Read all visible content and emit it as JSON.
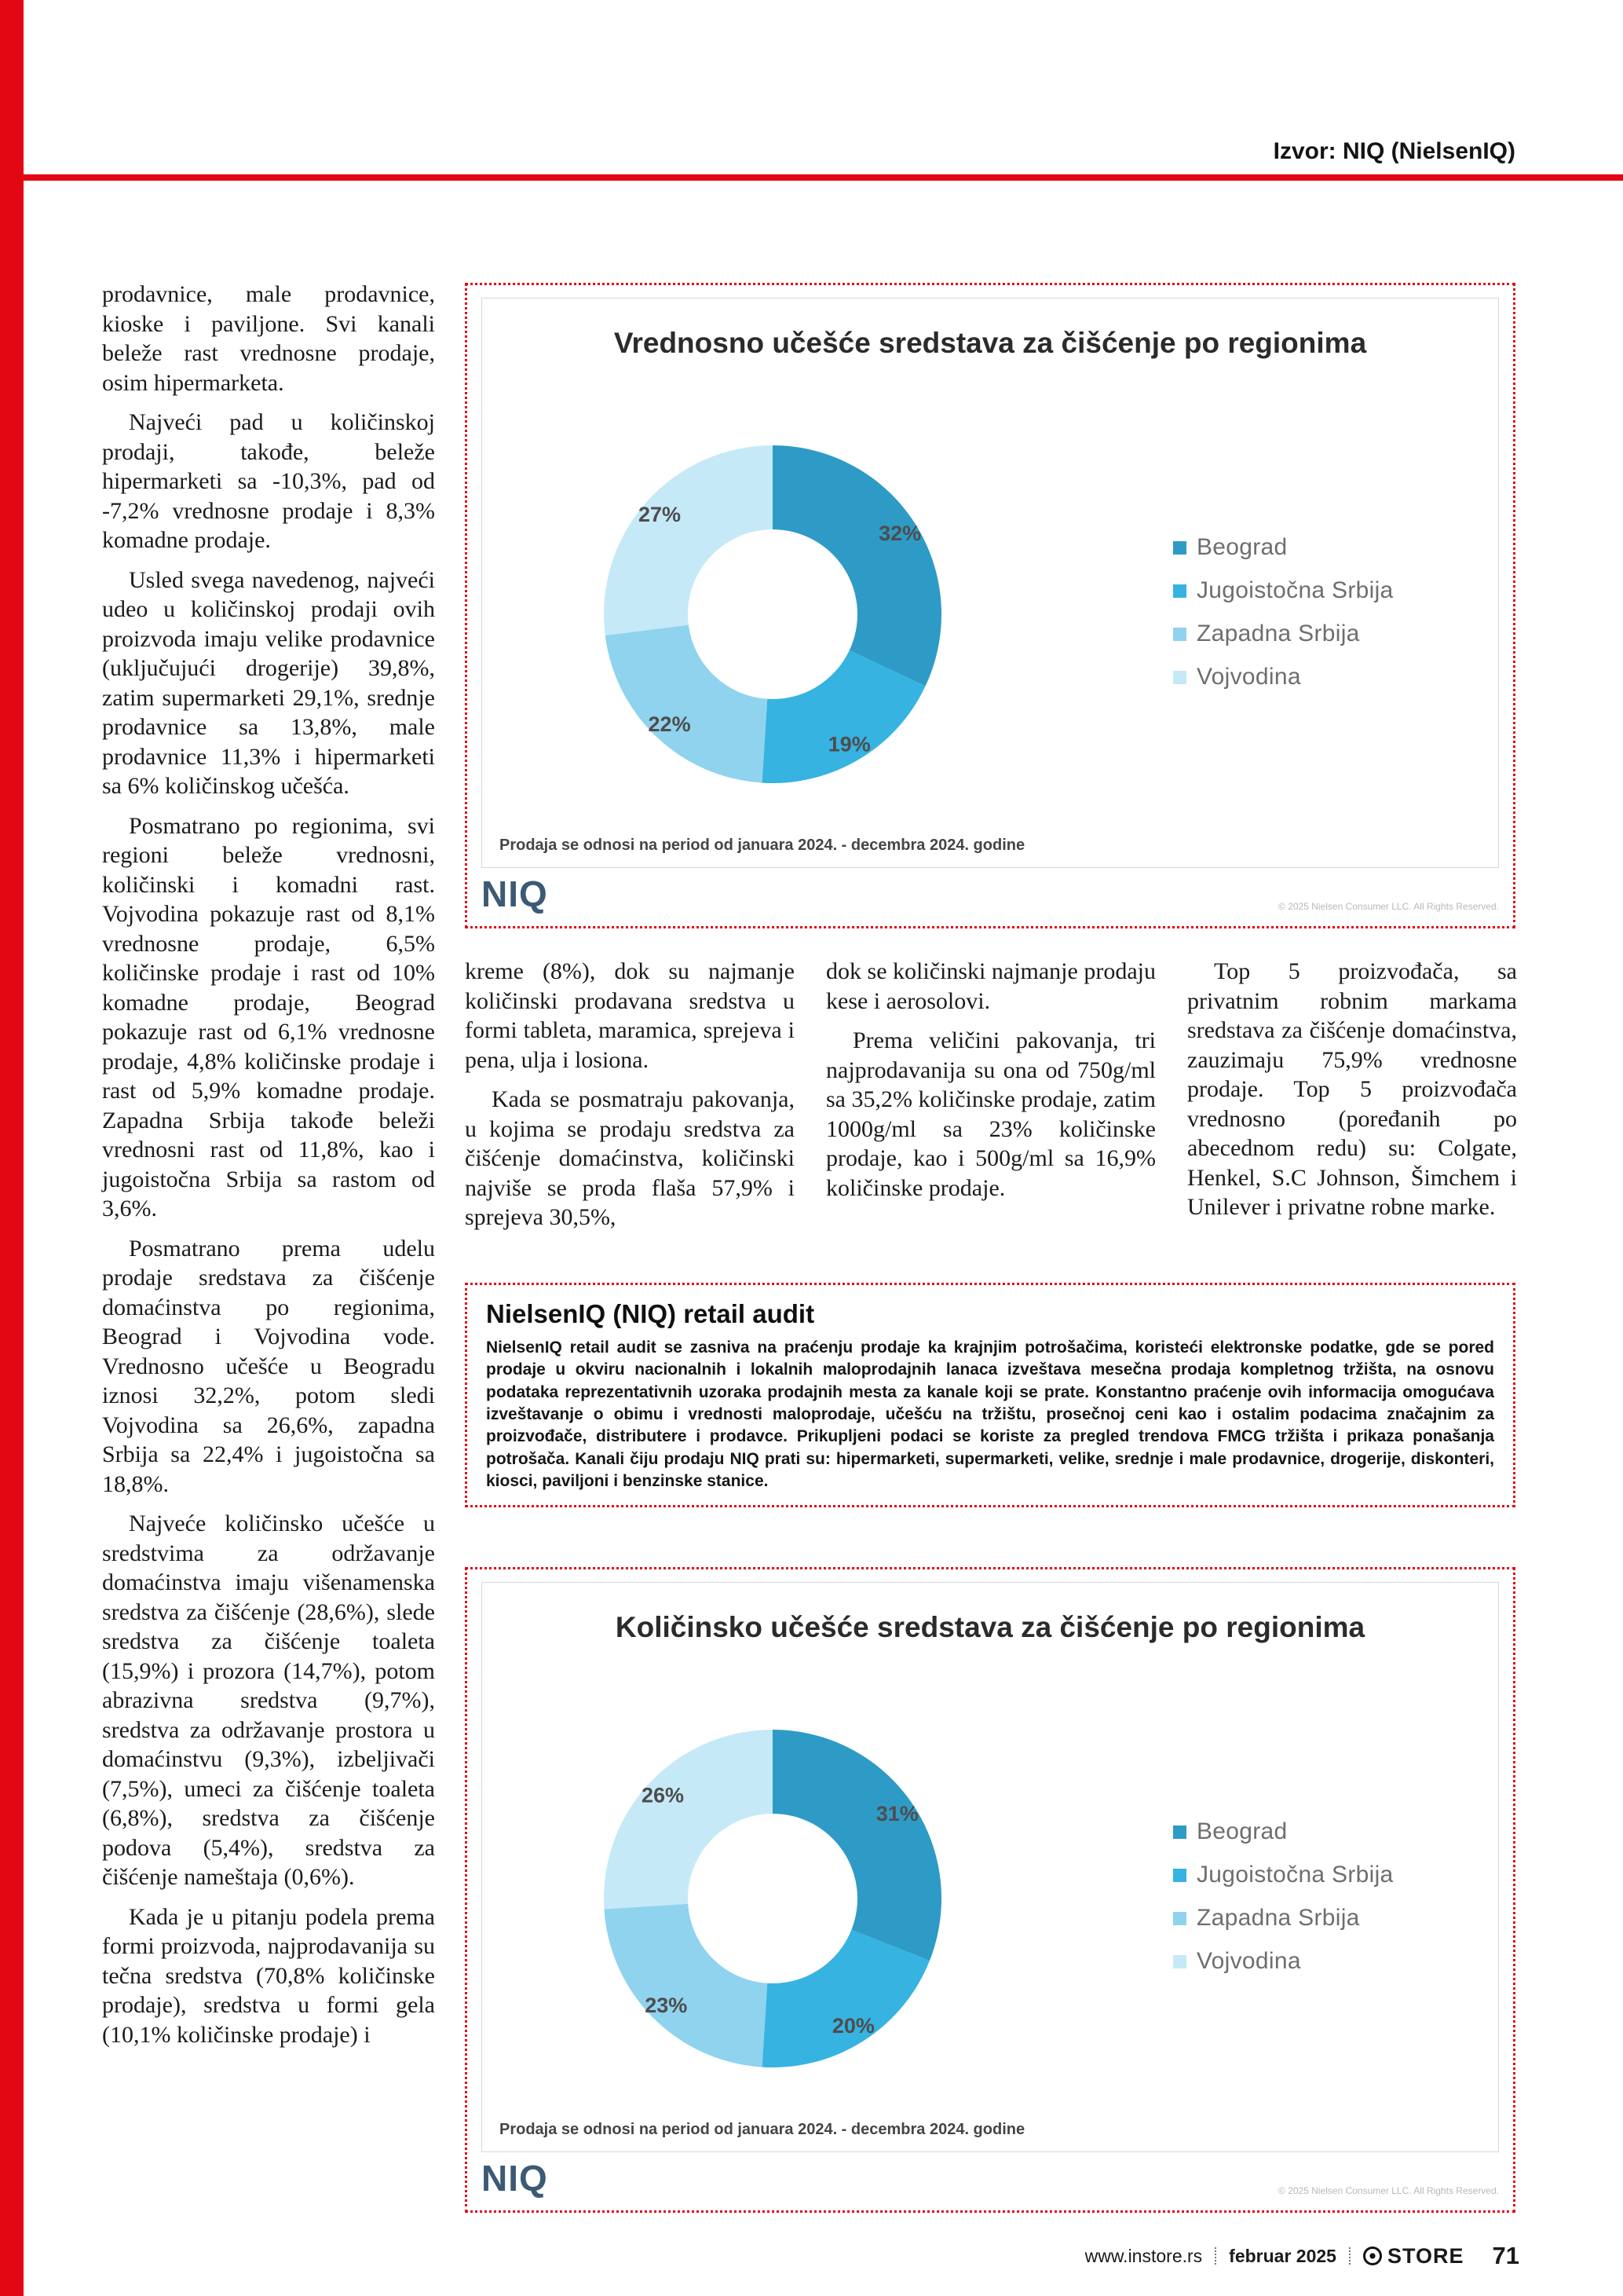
{
  "header": {
    "source_label": "Izvor: NIQ (NielsenIQ)"
  },
  "left_column": {
    "paragraphs": [
      {
        "cont": true,
        "text": "prodavnice, male prodavnice, kioske i paviljone. Svi kanali beleže rast vrednosne prodaje, osim hipermarketa."
      },
      {
        "text": "Najveći pad u količinskoj prodaji, takođe, beleže hipermarketi sa -10,3%, pad od -7,2% vrednosne prodaje i 8,3% komadne prodaje."
      },
      {
        "text": "Usled svega navedenog, najveći udeo u količinskoj prodaji ovih proizvoda imaju velike prodavnice (uključujući drogerije) 39,8%, zatim supermarketi 29,1%, srednje prodavnice sa 13,8%, male prodavnice 11,3% i hipermarketi sa 6% količinskog učešća."
      },
      {
        "text": "Posmatrano po regionima, svi regioni beleže vrednosni, količinski i komadni rast. Vojvodina pokazuje rast od 8,1% vrednosne prodaje, 6,5% količinske prodaje i rast od 10% komadne prodaje, Beograd pokazuje rast od 6,1% vrednosne prodaje, 4,8% količinske prodaje i rast od 5,9% komadne prodaje. Zapadna Srbija takođe beleži vrednosni rast od 11,8%, kao i jugoistočna Srbija sa rastom od 3,6%."
      },
      {
        "text": "Posmatrano prema udelu prodaje sredstava za čišćenje domaćinstva po regionima, Beograd i Vojvodina vode. Vrednosno učešće u Beogradu iznosi 32,2%, potom sledi Vojvodina sa 26,6%, zapadna Srbija sa 22,4% i jugoistočna sa 18,8%."
      },
      {
        "text": "Najveće količinsko učešće u sredstvima za održavanje domaćinstva imaju višenamenska sredstva za čišćenje (28,6%), slede sredstva za čišćenje toaleta (15,9%) i prozora (14,7%), potom abrazivna sredstva (9,7%), sredstva za održavanje prostora u domaćinstvu (9,3%), izbeljivači (7,5%), umeci za čišćenje toaleta (6,8%), sredstva za čišćenje podova (5,4%), sredstva za čišćenje nameštaja (0,6%)."
      },
      {
        "text": "Kada je u pitanju podela prema formi proizvoda, najprodavanija su tečna sredstva (70,8% količinske prodaje), sredstva u formi gela (10,1% količinske prodaje) i"
      }
    ]
  },
  "mid_columns": {
    "col1": {
      "paragraphs": [
        {
          "cont": true,
          "text": "kreme (8%), dok su najmanje količinski prodavana sredstva u formi tableta, maramica, sprejeva i pena, ulja i losiona."
        },
        {
          "text": "Kada se posmatraju pakovanja, u kojima se prodaju sredstva za čišćenje domaćinstva, količinski najviše se proda flaša 57,9% i sprejeva 30,5%,"
        }
      ]
    },
    "col2": {
      "paragraphs": [
        {
          "cont": true,
          "text": "dok se količinski najmanje prodaju kese i aerosolovi."
        },
        {
          "text": "Prema veličini pakovanja, tri najprodavanija su ona od 750g/ml sa 35,2% količinske prodaje, zatim 1000g/ml sa 23% količinske prodaje, kao i 500g/ml sa 16,9% količinske prodaje."
        }
      ]
    },
    "col3": {
      "paragraphs": [
        {
          "text": "Top 5 proizvođača, sa privatnim robnim markama sredstava za čišćenje domaćinstva, zauzimaju 75,9% vrednosne prodaje. Top 5 proizvođača vrednosno (poređanih po abecednom redu) su: Colgate, Henkel, S.C Johnson, Šimchem i Unilever i privatne robne marke."
        }
      ]
    }
  },
  "audit_box": {
    "title": "NielsenIQ (NIQ) retail audit",
    "body": "NielsenIQ retail audit se zasniva na praćenju prodaje ka krajnjim potrošačima, koristeći elektronske podatke, gde se pored prodaje u okviru nacionalnih i lokalnih maloprodajnih lanaca izveštava mesečna prodaja kompletnog tržišta, na osnovu podataka reprezentativnih uzoraka prodajnih mesta za kanale koji se prate. Konstantno praćenje ovih informacija omogućava izveštavanje o obimu i vrednosti maloprodaje, učešću na tržištu, prosečnoj ceni kao i ostalim podacima značajnim za proizvođače, distributere i prodavce. Prikupljeni podaci se koriste za pregled trendova FMCG tržišta i prikaza ponašanja potrošača. Kanali čiju prodaju NIQ prati su: hipermarketi, supermarketi, velike, srednje i male prodavnice, drogerije, diskonteri, kiosci, paviljoni i benzinske stanice."
  },
  "chart_data": [
    {
      "type": "pie",
      "subtype": "donut",
      "title": "Vrednosno učešće sredstava za čišćenje po regionima",
      "labels": [
        "Beograd",
        "Jugoistočna Srbija",
        "Zapadna Srbija",
        "Vojvodina"
      ],
      "values": [
        32,
        19,
        22,
        27
      ],
      "colors": [
        "#2E9BC6",
        "#36B3E1",
        "#8FD3EE",
        "#C6E9F8"
      ],
      "legend_position": "right",
      "caption": "Prodaja se odnosi na period od januara 2024. - decembra 2024. godine",
      "logo": "NIQ",
      "fine_print": "© 2025 Nielsen Consumer LLC. All Rights Reserved."
    },
    {
      "type": "pie",
      "subtype": "donut",
      "title": "Količinsko učešće sredstava za čišćenje po regionima",
      "labels": [
        "Beograd",
        "Jugoistočna Srbija",
        "Zapadna Srbija",
        "Vojvodina"
      ],
      "values": [
        31,
        20,
        23,
        26
      ],
      "colors": [
        "#2E9BC6",
        "#36B3E1",
        "#8FD3EE",
        "#C6E9F8"
      ],
      "legend_position": "right",
      "caption": "Prodaja se odnosi na period od januara 2024. - decembra 2024. godine",
      "logo": "NIQ",
      "fine_print": "© 2025 Nielsen Consumer LLC. All Rights Reserved."
    }
  ],
  "footer": {
    "website": "www.instore.rs",
    "date": "februar 2025",
    "magazine": "STORE",
    "page_number": "71"
  }
}
